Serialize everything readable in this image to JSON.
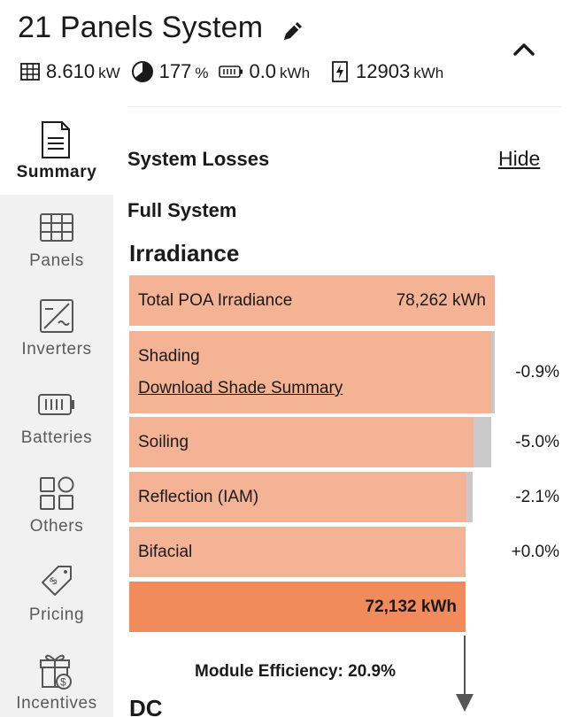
{
  "header": {
    "title": "21 Panels System",
    "stats": [
      {
        "icon": "grid-icon",
        "value": "8.610",
        "unit": "kW"
      },
      {
        "icon": "pie-icon",
        "value": "177",
        "unit": "%"
      },
      {
        "icon": "battery-icon",
        "value": "0.0",
        "unit": "kWh"
      },
      {
        "icon": "energy-icon",
        "value": "12903",
        "unit": "kWh"
      }
    ]
  },
  "sidebar": {
    "items": [
      {
        "label": "Summary",
        "icon": "document-icon",
        "active": true
      },
      {
        "label": "Panels",
        "icon": "grid-icon"
      },
      {
        "label": "Inverters",
        "icon": "inverter-icon"
      },
      {
        "label": "Batteries",
        "icon": "battery-icon"
      },
      {
        "label": "Others",
        "icon": "others-icon"
      },
      {
        "label": "Pricing",
        "icon": "price-tag-icon"
      },
      {
        "label": "Incentives",
        "icon": "gift-icon"
      }
    ]
  },
  "main": {
    "losses_title": "System Losses",
    "hide_label": "Hide",
    "full_system": "Full System",
    "irradiance_title": "Irradiance",
    "rows": [
      {
        "label": "Total POA Irradiance",
        "value": "78,262 kWh",
        "pct": ""
      },
      {
        "label": "Shading",
        "link": "Download Shade Summary",
        "pct": "-0.9%"
      },
      {
        "label": "Soiling",
        "pct": "-5.0%"
      },
      {
        "label": "Reflection (IAM)",
        "pct": "-2.1%"
      },
      {
        "label": "Bifacial",
        "pct": "+0.0%"
      },
      {
        "label": "",
        "value": "72,132 kWh",
        "pct": ""
      }
    ],
    "module_efficiency": "Module Efficiency: 20.9%",
    "dc_title": "DC"
  },
  "colors": {
    "bar_light": "#f4b395",
    "bar_strong": "#f28b5c",
    "loss_gray": "#c9c9c9",
    "sidebar_bg": "#f1f1f1"
  }
}
